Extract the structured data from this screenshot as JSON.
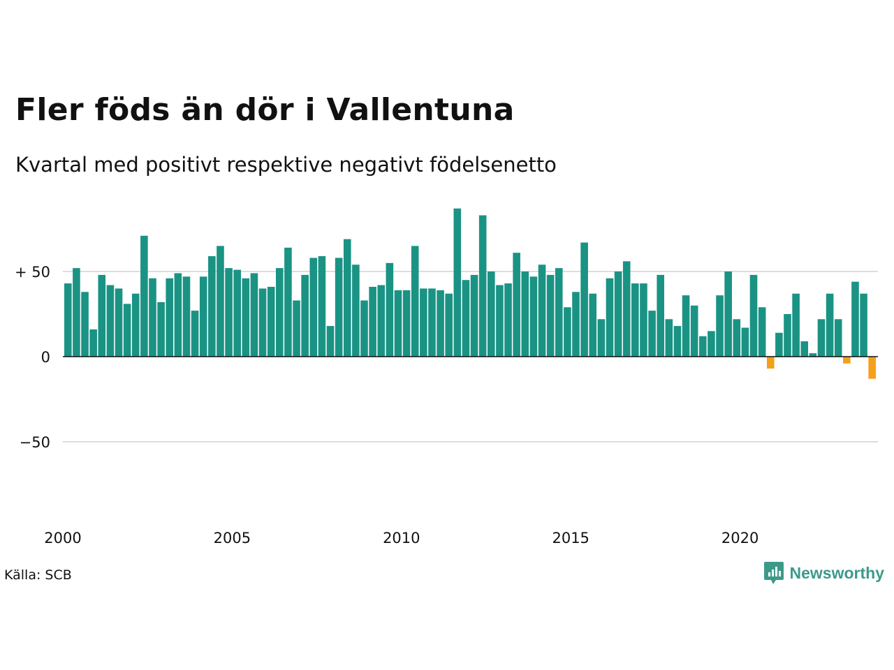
{
  "header": {
    "title": "Fler föds än dör i Vallentuna",
    "subtitle": "Kvartal med positivt respektive negativt födelsenetto"
  },
  "footer": {
    "source": "Källa: SCB",
    "brand": "Newsworthy",
    "brand_icon": "newsworthy-logo-icon"
  },
  "colors": {
    "positive": "#1a9384",
    "negative": "#f5a01a",
    "grid": "#dddddd",
    "brand": "#3c9a8a"
  },
  "chart_data": {
    "type": "bar",
    "title": "Fler föds än dör i Vallentuna",
    "subtitle": "Kvartal med positivt respektive negativt födelsenetto",
    "xlabel": "",
    "ylabel": "",
    "ylim": [
      -80,
      90
    ],
    "yticks": [
      {
        "value": 50,
        "label": "+ 50"
      },
      {
        "value": 0,
        "label": "0"
      },
      {
        "value": -50,
        "label": "−50"
      }
    ],
    "xticks": [
      {
        "value": 2000,
        "label": "2000"
      },
      {
        "value": 2005,
        "label": "2005"
      },
      {
        "value": 2010,
        "label": "2010"
      },
      {
        "value": 2015,
        "label": "2015"
      },
      {
        "value": 2020,
        "label": "2020"
      }
    ],
    "grid": true,
    "start_year": 2000,
    "periods_per_year": 4,
    "values": [
      43,
      52,
      38,
      16,
      48,
      42,
      40,
      31,
      37,
      71,
      46,
      32,
      46,
      49,
      47,
      27,
      47,
      59,
      65,
      52,
      51,
      46,
      49,
      40,
      41,
      52,
      64,
      33,
      48,
      58,
      59,
      18,
      58,
      69,
      54,
      33,
      41,
      42,
      55,
      39,
      39,
      65,
      40,
      40,
      39,
      37,
      87,
      45,
      48,
      83,
      50,
      42,
      43,
      61,
      50,
      47,
      54,
      48,
      52,
      29,
      38,
      67,
      37,
      22,
      46,
      50,
      56,
      43,
      43,
      27,
      48,
      22,
      18,
      36,
      30,
      12,
      15,
      36,
      50,
      22,
      17,
      48,
      29,
      -7,
      14,
      25,
      37,
      9,
      2,
      22,
      37,
      22,
      -4,
      44,
      37,
      -13
    ]
  }
}
